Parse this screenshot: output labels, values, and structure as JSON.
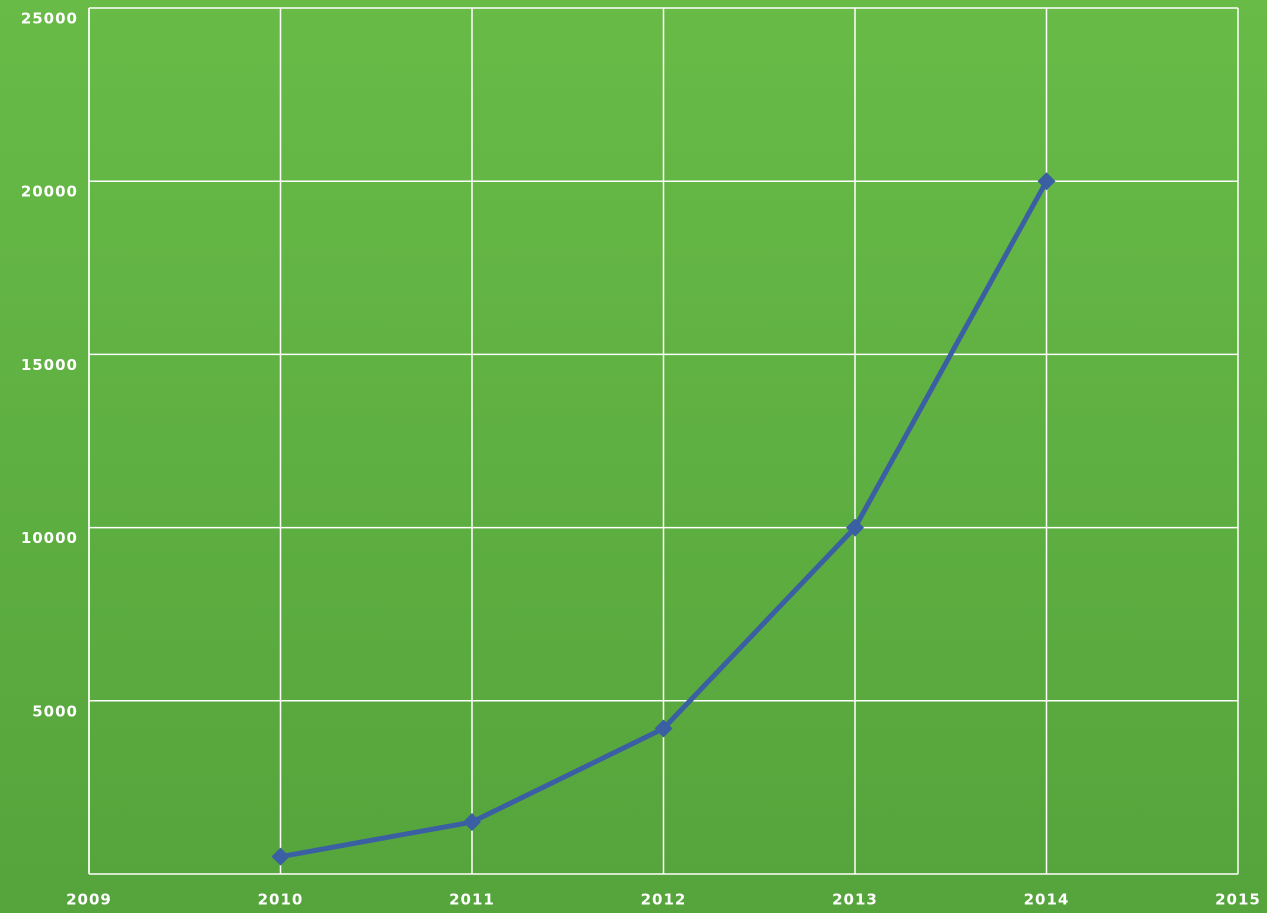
{
  "chart_data": {
    "type": "line",
    "x": [
      2010,
      2011,
      2012,
      2013,
      2014
    ],
    "values": [
      500,
      1500,
      4200,
      10000,
      20000
    ],
    "color": "#3b5fa3",
    "xlim": [
      2009,
      2015
    ],
    "xticks": [
      2009,
      2010,
      2011,
      2012,
      2013,
      2014,
      2015
    ],
    "ylim": [
      0,
      25000
    ],
    "yticks": [
      5000,
      10000,
      15000,
      20000,
      25000
    ],
    "grid": true
  }
}
